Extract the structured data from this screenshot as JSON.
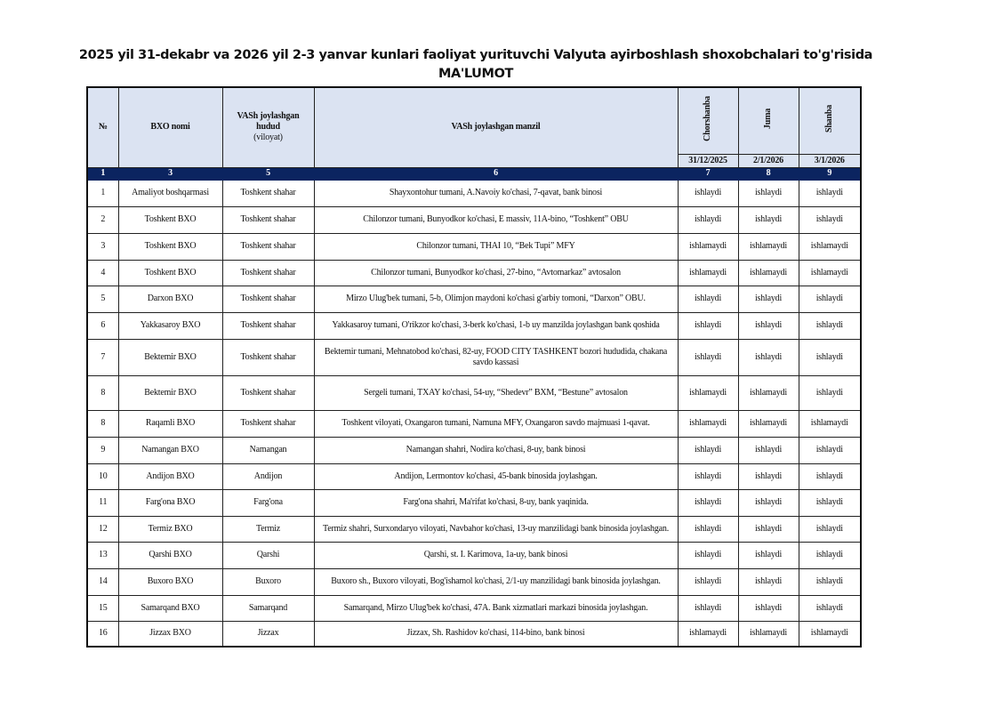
{
  "title_line1": "2025 yil 31-dekabr va 2026 yil 2-3 yanvar kunlari faoliyat yurituvchi Valyuta ayirboshlash shoxobchalari to'g'risida",
  "title_line2": "MA'LUMOT",
  "headers": {
    "no": "№",
    "name": "BXO nomi",
    "region_l1": "VASh joylashgan",
    "region_l2": "hudud",
    "region_l3": "(viloyat)",
    "address": "VASh joylashgan manzil",
    "days": [
      "Chorshanba",
      "Juma",
      "Shanba"
    ],
    "dates": [
      "31/12/2025",
      "2/1/2026",
      "3/1/2026"
    ]
  },
  "column_numbers": [
    "1",
    "3",
    "5",
    "6",
    "7",
    "8",
    "9"
  ],
  "rows": [
    {
      "no": "1",
      "name": "Amaliyot boshqarmasi",
      "region": "Toshkent shahar",
      "address": "Shayxontohur tumani, A.Navoiy ko'chasi, 7-qavat, bank binosi",
      "status": [
        "ishlaydi",
        "ishlaydi",
        "ishlaydi"
      ]
    },
    {
      "no": "2",
      "name": "Toshkent BXO",
      "region": "Toshkent shahar",
      "address": "Chilonzor tumani, Bunyodkor ko'chasi, E massiv, 11A-bino, “Toshkent” OBU",
      "status": [
        "ishlaydi",
        "ishlaydi",
        "ishlaydi"
      ]
    },
    {
      "no": "3",
      "name": "Toshkent BXO",
      "region": "Toshkent shahar",
      "address": "Chilonzor tumani, THAI 10, “Bek Tupi” MFY",
      "status": [
        "ishlamaydi",
        "ishlamaydi",
        "ishlamaydi"
      ]
    },
    {
      "no": "4",
      "name": "Toshkent BXO",
      "region": "Toshkent shahar",
      "address": "Chilonzor tumani, Bunyodkor ko'chasi, 27-bino, “Avtomarkaz” avtosalon",
      "status": [
        "ishlamaydi",
        "ishlamaydi",
        "ishlamaydi"
      ]
    },
    {
      "no": "5",
      "name": "Darxon BXO",
      "region": "Toshkent shahar",
      "address": "Mirzo Ulug'bek tumani, 5-b, Olimjon maydoni ko'chasi g'arbiy tomoni, “Darxon” OBU.",
      "status": [
        "ishlaydi",
        "ishlaydi",
        "ishlaydi"
      ]
    },
    {
      "no": "6",
      "name": "Yakkasaroy BXO",
      "region": "Toshkent shahar",
      "address": "Yakkasaroy tumani, O'rikzor ko'chasi, 3-berk ko'chasi, 1-b uy manzilda joylashgan  bank qoshida",
      "status": [
        "ishlaydi",
        "ishlaydi",
        "ishlaydi"
      ]
    },
    {
      "no": "7",
      "name": "Bektemir BXO",
      "region": "Toshkent shahar",
      "address": "Bektemir tumani, Mehnatobod ko'chasi, 82-uy, FOOD CITY TASHKENT bozori hududida, chakana savdo kassasi",
      "status": [
        "ishlaydi",
        "ishlaydi",
        "ishlaydi"
      ]
    },
    {
      "no": "8",
      "name": "Bektemir BXO",
      "region": "Toshkent shahar",
      "address": "Sergeli tumani, TXAY ko'chasi, 54-uy, “Shedevr” BXM, “Bestune” avtosalon",
      "status": [
        "ishlamaydi",
        "ishlamaydi",
        "ishlaydi"
      ]
    },
    {
      "no": "8",
      "name": "Raqamli BXO",
      "region": "Toshkent shahar",
      "address": "Toshkent viloyati, Oxangaron tumani, Namuna MFY, Oxangaron savdo majmuasi 1-qavat.",
      "status": [
        "ishlamaydi",
        "ishlamaydi",
        "ishlamaydi"
      ]
    },
    {
      "no": "9",
      "name": "Namangan BXO",
      "region": "Namangan",
      "address": "Namangan shahri, Nodira ko'chasi, 8-uy, bank binosi",
      "status": [
        "ishlaydi",
        "ishlaydi",
        "ishlaydi"
      ]
    },
    {
      "no": "10",
      "name": "Andijon BXO",
      "region": "Andijon",
      "address": "Andijon, Lermontov ko'chasi, 45-bank binosida joylashgan.",
      "status": [
        "ishlaydi",
        "ishlaydi",
        "ishlaydi"
      ]
    },
    {
      "no": "11",
      "name": "Farg'ona BXO",
      "region": "Farg'ona",
      "address": "Farg'ona shahri, Ma'rifat ko'chasi, 8-uy, bank yaqinida.",
      "status": [
        "ishlaydi",
        "ishlaydi",
        "ishlaydi"
      ]
    },
    {
      "no": "12",
      "name": "Termiz BXO",
      "region": "Termiz",
      "address": "Termiz shahri, Surxondaryo viloyati, Navbahor ko'chasi, 13-uy manzilidagi bank binosida joylashgan.",
      "status": [
        "ishlaydi",
        "ishlaydi",
        "ishlaydi"
      ]
    },
    {
      "no": "13",
      "name": "Qarshi BXO",
      "region": "Qarshi",
      "address": "Qarshi, st. I. Karimova, 1a-uy, bank binosi",
      "status": [
        "ishlaydi",
        "ishlaydi",
        "ishlaydi"
      ]
    },
    {
      "no": "14",
      "name": "Buxoro BXO",
      "region": "Buxoro",
      "address": "Buxoro sh., Buxoro viloyati, Bog'ishamol ko'chasi, 2/1-uy manzilidagi bank binosida joylashgan.",
      "status": [
        "ishlaydi",
        "ishlaydi",
        "ishlaydi"
      ]
    },
    {
      "no": "15",
      "name": "Samarqand BXO",
      "region": "Samarqand",
      "address": "Samarqand, Mirzo Ulug'bek ko'chasi, 47A. Bank  xizmatlari  markazi binosida joylashgan.",
      "status": [
        "ishlaydi",
        "ishlaydi",
        "ishlaydi"
      ]
    },
    {
      "no": "16",
      "name": "Jizzax BXO",
      "region": "Jizzax",
      "address": "Jizzax, Sh. Rashidov ko'chasi, 114-bino, bank binosi",
      "status": [
        "ishlamaydi",
        "ishlamaydi",
        "ishlamaydi"
      ]
    }
  ]
}
